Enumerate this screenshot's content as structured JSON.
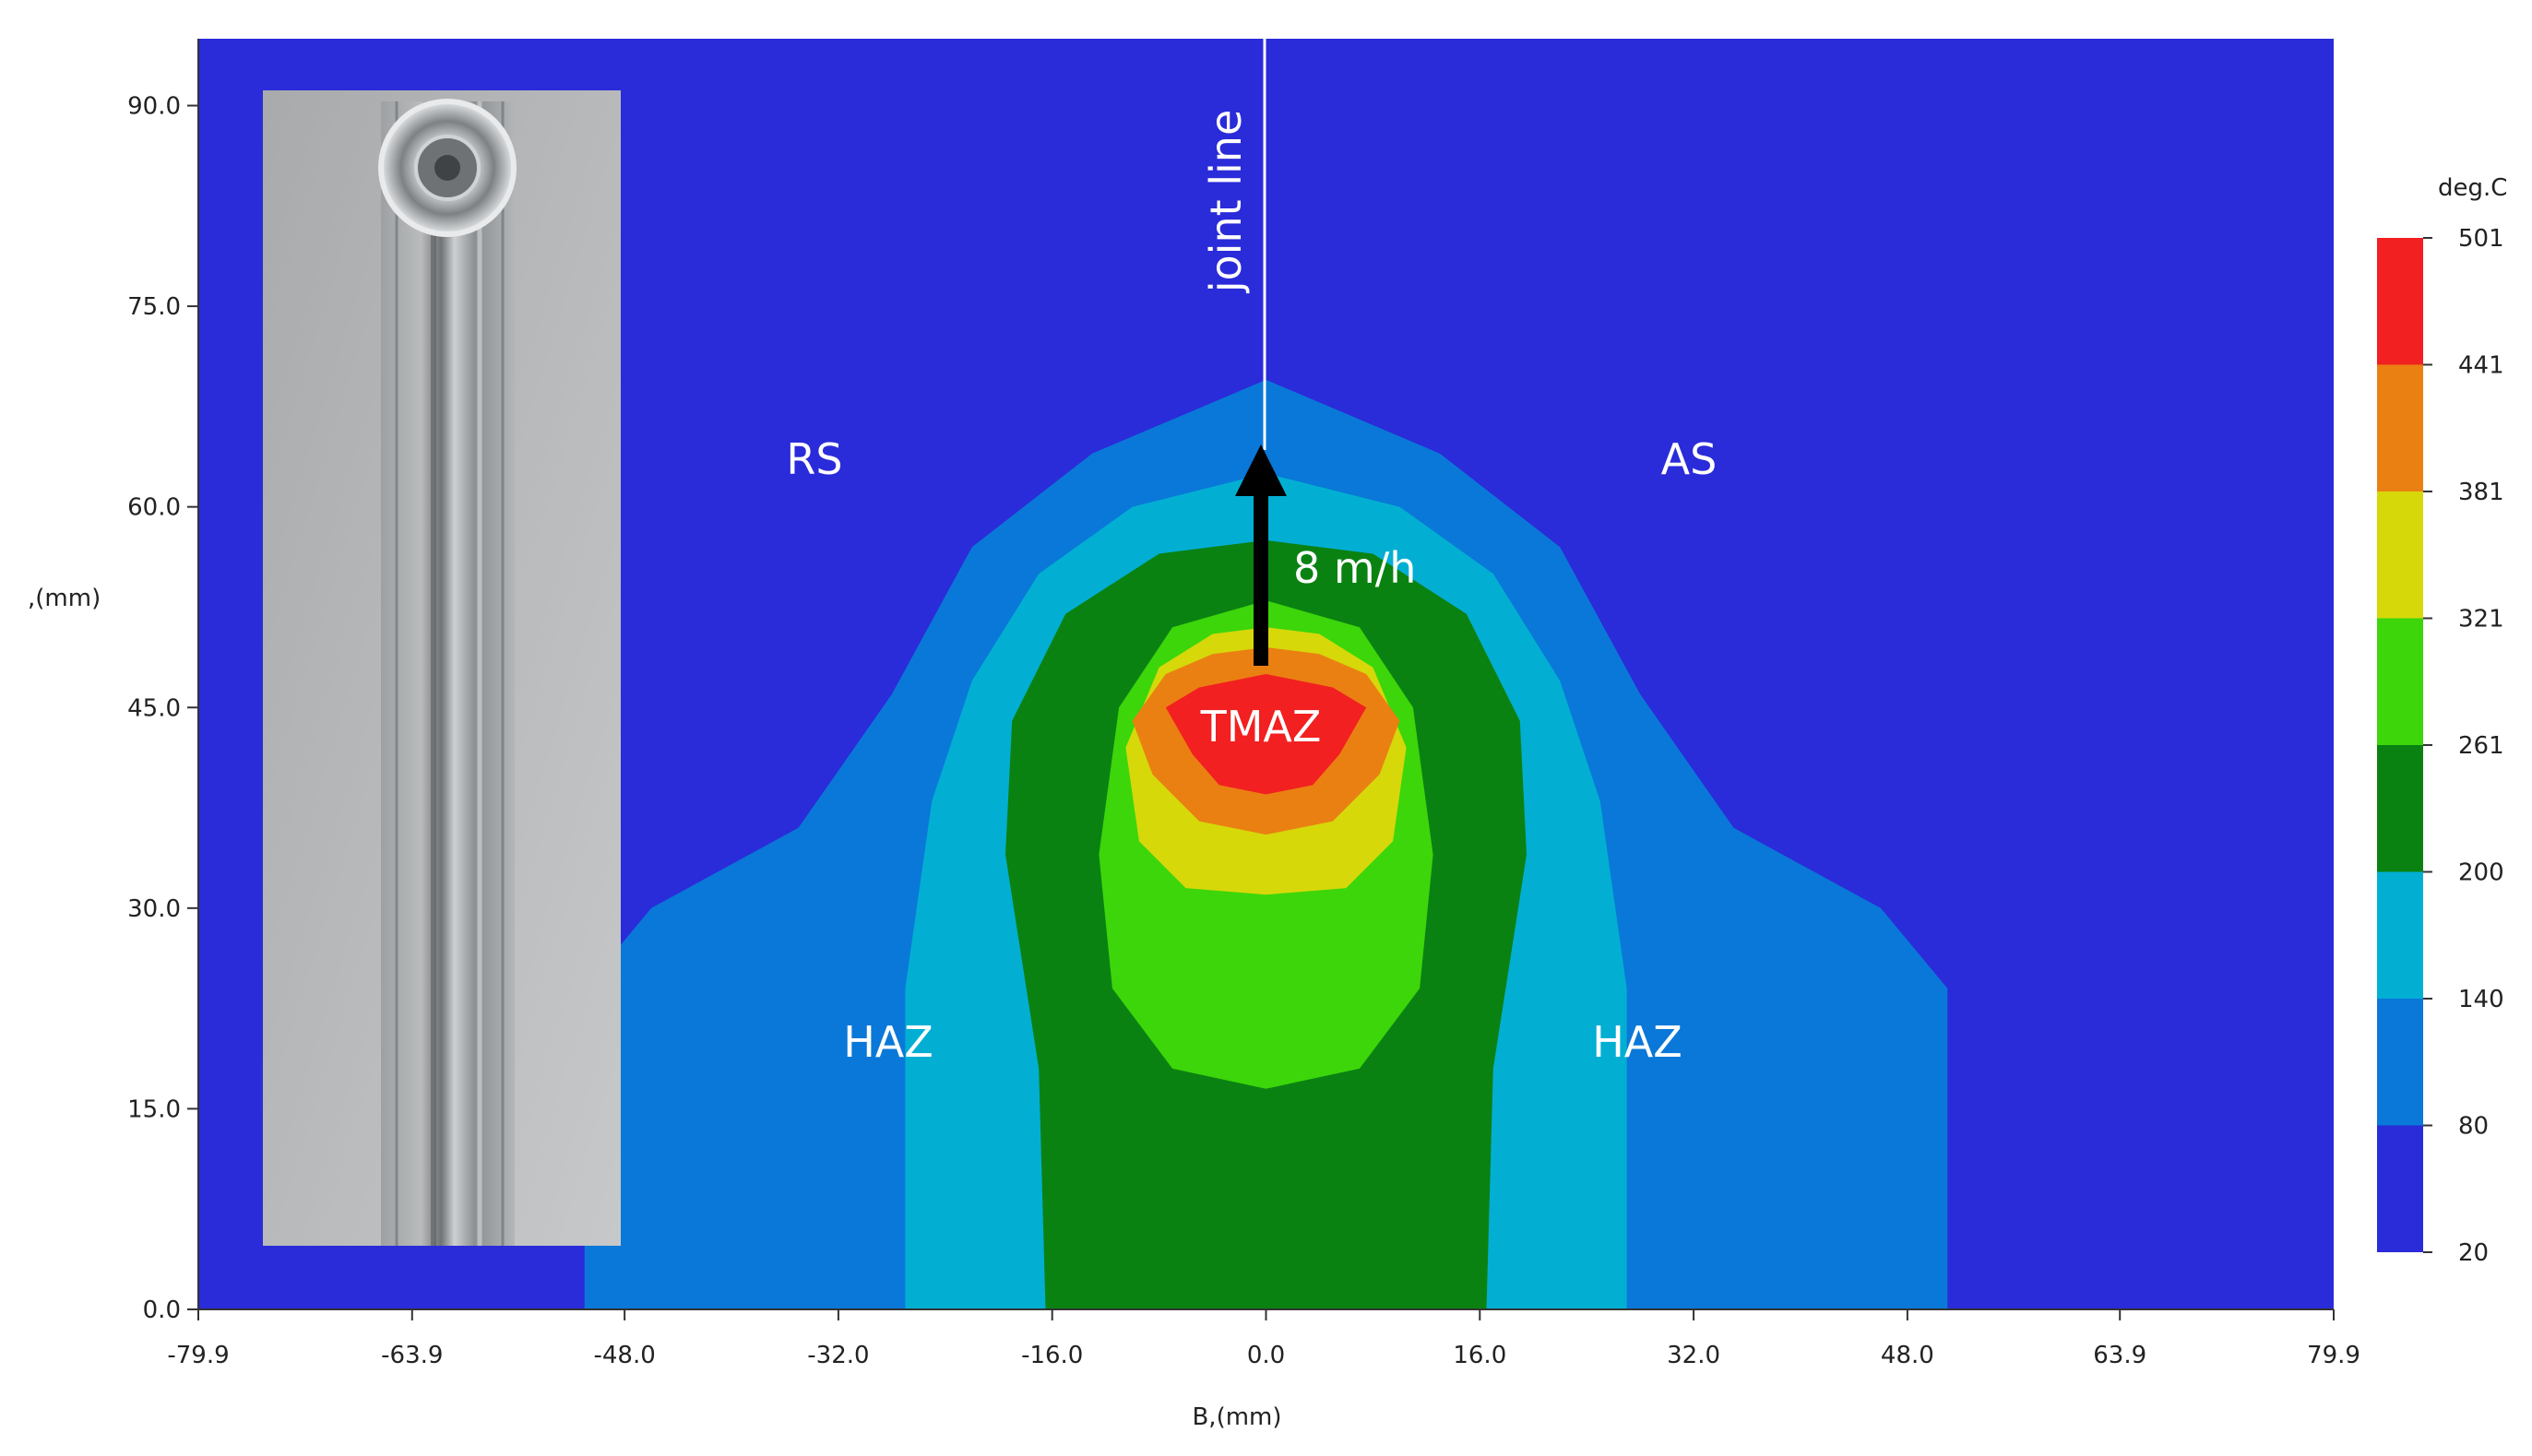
{
  "chart_data": {
    "type": "heatmap",
    "title": "",
    "xlabel": "B,(mm)",
    "ylabel": ",(mm)",
    "xlim": [
      -79.9,
      79.9
    ],
    "ylim": [
      0.0,
      95.0
    ],
    "x_ticks": [
      "-79.9",
      "-63.9",
      "-48.0",
      "-32.0",
      "-16.0",
      "0.0",
      "16.0",
      "32.0",
      "48.0",
      "63.9",
      "79.9"
    ],
    "x_tick_values": [
      -79.9,
      -63.9,
      -48.0,
      -32.0,
      -16.0,
      0.0,
      16.0,
      32.0,
      48.0,
      63.9,
      79.9
    ],
    "y_ticks": [
      "0.0",
      "15.0",
      "30.0",
      "45.0",
      "60.0",
      "75.0",
      "90.0"
    ],
    "y_tick_values": [
      0.0,
      15.0,
      30.0,
      45.0,
      60.0,
      75.0,
      90.0
    ],
    "colorbar": {
      "unit": "deg.C",
      "levels": [
        "20",
        "80",
        "140",
        "200",
        "261",
        "321",
        "381",
        "441",
        "501"
      ],
      "level_values": [
        20,
        80,
        140,
        200,
        261,
        321,
        381,
        441,
        501
      ],
      "colors": [
        "#2a2bd9",
        "#0a78d8",
        "#02afd3",
        "#0a8212",
        "#3cd60a",
        "#d6d80a",
        "#ea8012",
        "#f22020"
      ]
    },
    "contours": [
      {
        "band": "80-140",
        "color": "#0a78d8",
        "points": [
          [
            -51,
            0
          ],
          [
            -51,
            24
          ],
          [
            -46,
            30
          ],
          [
            -35,
            36
          ],
          [
            -28,
            46
          ],
          [
            -22,
            57
          ],
          [
            -13,
            64
          ],
          [
            0,
            69.5
          ],
          [
            13,
            64
          ],
          [
            22,
            57
          ],
          [
            28,
            46
          ],
          [
            35,
            36
          ],
          [
            46,
            30
          ],
          [
            51,
            24
          ],
          [
            51,
            0
          ]
        ]
      },
      {
        "band": "140-200",
        "color": "#02afd3",
        "points": [
          [
            -27,
            0
          ],
          [
            -27,
            24
          ],
          [
            -25,
            38
          ],
          [
            -22,
            47
          ],
          [
            -17,
            55
          ],
          [
            -10,
            60
          ],
          [
            0,
            62.5
          ],
          [
            10,
            60
          ],
          [
            17,
            55
          ],
          [
            22,
            47
          ],
          [
            25,
            38
          ],
          [
            27,
            24
          ],
          [
            27,
            0
          ]
        ]
      },
      {
        "band": "200-261",
        "color": "#0a8212",
        "points": [
          [
            -16.5,
            0
          ],
          [
            -17,
            18
          ],
          [
            -19.5,
            34
          ],
          [
            -19,
            44
          ],
          [
            -15,
            52
          ],
          [
            -8,
            56.5
          ],
          [
            0,
            57.5
          ],
          [
            8,
            56.5
          ],
          [
            15,
            52
          ],
          [
            19,
            44
          ],
          [
            19.5,
            34
          ],
          [
            17,
            18
          ],
          [
            16.5,
            0
          ]
        ]
      },
      {
        "band": "261-321",
        "color": "#3cd60a",
        "points": [
          [
            0,
            16.5
          ],
          [
            -7,
            18
          ],
          [
            -11.5,
            24
          ],
          [
            -12.5,
            34
          ],
          [
            -11,
            45
          ],
          [
            -7,
            51
          ],
          [
            0,
            53
          ],
          [
            7,
            51
          ],
          [
            11,
            45
          ],
          [
            12.5,
            34
          ],
          [
            11.5,
            24
          ],
          [
            7,
            18
          ]
        ]
      },
      {
        "band": "321-381",
        "color": "#d6d80a",
        "points": [
          [
            0,
            31
          ],
          [
            -6,
            31.5
          ],
          [
            -9.5,
            35
          ],
          [
            -10.5,
            42
          ],
          [
            -8,
            48
          ],
          [
            -4,
            50.5
          ],
          [
            0,
            51
          ],
          [
            4,
            50.5
          ],
          [
            8,
            48
          ],
          [
            10.5,
            42
          ],
          [
            9.5,
            35
          ],
          [
            6,
            31.5
          ]
        ]
      },
      {
        "band": "381-441",
        "color": "#ea8012",
        "points": [
          [
            0,
            35.5
          ],
          [
            -5,
            36.5
          ],
          [
            -8.5,
            40
          ],
          [
            -10,
            44
          ],
          [
            -7.5,
            47.5
          ],
          [
            -4,
            49
          ],
          [
            0,
            49.5
          ],
          [
            4,
            49
          ],
          [
            7.5,
            47.5
          ],
          [
            10,
            44
          ],
          [
            8.5,
            40
          ],
          [
            5,
            36.5
          ]
        ]
      },
      {
        "band": "441-501",
        "color": "#f22020",
        "points": [
          [
            0,
            38.5
          ],
          [
            -3.5,
            39.2
          ],
          [
            -5.5,
            41.5
          ],
          [
            -7.5,
            45
          ],
          [
            -5,
            46.5
          ],
          [
            0,
            47.5
          ],
          [
            5,
            46.5
          ],
          [
            7.5,
            45
          ],
          [
            5.5,
            41.5
          ],
          [
            3.5,
            39.2
          ]
        ]
      }
    ],
    "annotations": {
      "joint_line": "joint line",
      "speed": "8 m/h",
      "rs": "RS",
      "as": "AS",
      "haz_left": "HAZ",
      "haz_right": "HAZ",
      "tmaz": "TMAZ"
    },
    "grid": false,
    "legend": "colorbar-right"
  }
}
